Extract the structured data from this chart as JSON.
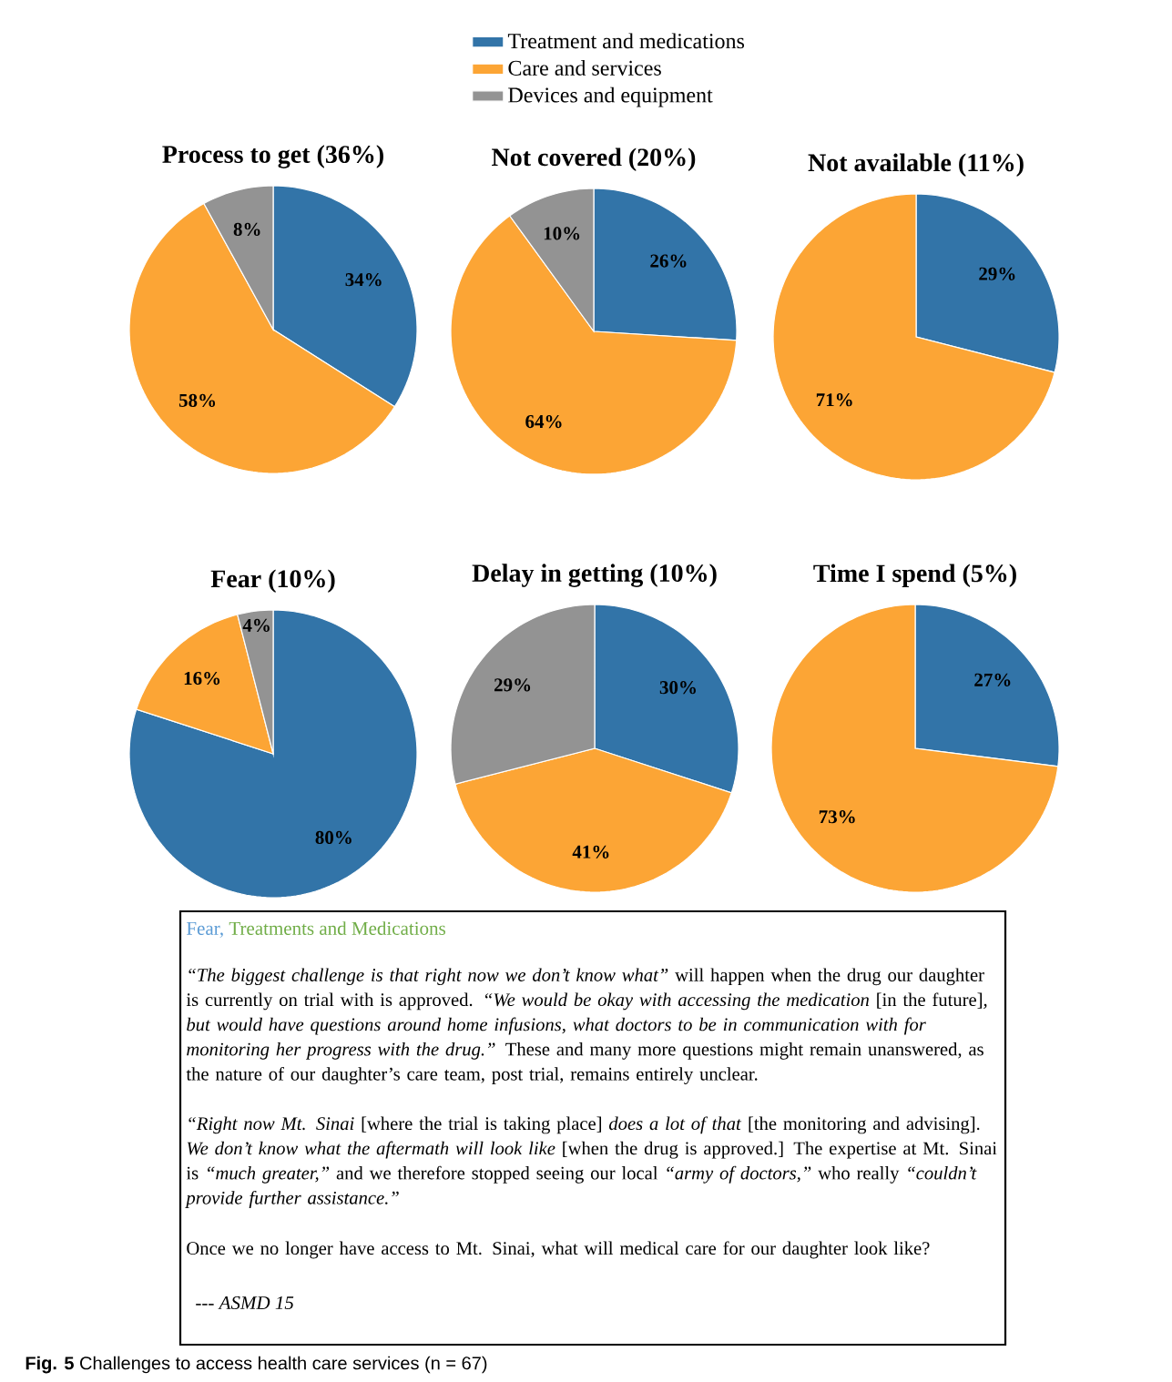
{
  "chart_data": [
    {
      "type": "pie",
      "title": "Process to get (36%)",
      "categories": [
        "Treatment and medications",
        "Care and services",
        "Devices and equipment"
      ],
      "values": [
        34,
        58,
        8
      ],
      "value_labels": [
        "34%",
        "58%",
        "8%"
      ],
      "colors": [
        "#3274a8",
        "#fca535",
        "#939393"
      ],
      "legend": "top"
    },
    {
      "type": "pie",
      "title": "Not covered (20%)",
      "categories": [
        null,
        null,
        null
      ],
      "values": [
        26,
        64,
        10
      ],
      "value_labels": [
        "26%",
        "64%",
        "10%"
      ],
      "colors": [
        "#3274a8",
        "#fca535",
        "#939393"
      ]
    },
    {
      "type": "pie",
      "title": "Not available (11%)",
      "categories": [
        null,
        null
      ],
      "values": [
        29,
        71
      ],
      "value_labels": [
        "29%",
        "71%"
      ],
      "colors": [
        "#3274a8",
        "#fca535"
      ]
    },
    {
      "type": "pie",
      "title": "Fear (10%)",
      "categories": [
        null,
        null,
        null
      ],
      "values": [
        80,
        16,
        4
      ],
      "value_labels": [
        "80%",
        "16%",
        "4%"
      ],
      "colors": [
        "#3274a8",
        "#fca535",
        "#939393"
      ]
    },
    {
      "type": "pie",
      "title": "Delay in getting (10%)",
      "categories": [
        null,
        null,
        null
      ],
      "values": [
        30,
        41,
        29
      ],
      "value_labels": [
        "30%",
        "41%",
        "29%"
      ],
      "colors": [
        "#3274a8",
        "#fca535",
        "#939393"
      ]
    },
    {
      "type": "pie",
      "title": "Time I spend (5%)",
      "categories": [
        null,
        null
      ],
      "values": [
        27,
        73
      ],
      "value_labels": [
        "27%",
        "73%"
      ],
      "colors": [
        "#3274a8",
        "#fca535"
      ]
    },
    {
      "type": "other",
      "title": "Fear,",
      "subtitle": "Treatments and Medications",
      "annotations": [
        "*“The biggest challenge is that right now we don’t know what”* will happen when the drug our daughter is currently on trial with is approved. *“We would be okay with accessing the medication* [in the future]*, but would have questions around home infusions, what doctors to be in communication with for monitoring her progress with the drug.”* These and many more questions might remain unanswered, as the nature of our daughter’s care team, post trial, remains entirely unclear.",
        "*“Right now Mt. Sinai* [where the trial is taking place] *does a lot of that* [the monitoring and advising]. *We don’t know what the aftermath will look like* [when the drug is approved.] The expertise at Mt. Sinai is *“much greater,”* and we therefore stopped seeing our local *“army of doctors,”* who really *“couldn’t provide further assistance.”*",
        "Once we no longer have access to Mt. Sinai, what will medical care for our daughter look like?",
        "--- ASMD 15",
        "**Fig. 5** Challenges to access health care services (n = 67)"
      ]
    }
  ]
}
